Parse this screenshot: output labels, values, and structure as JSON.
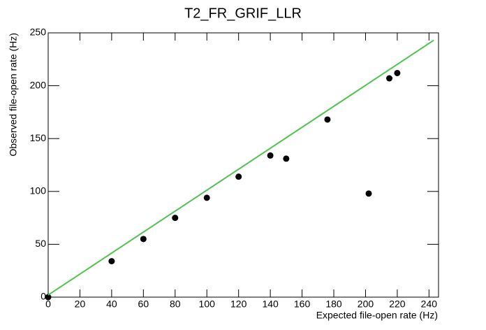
{
  "chart_data": {
    "type": "scatter",
    "title": "T2_FR_GRIF_LLR",
    "x_label": "Expected file-open rate (Hz)",
    "y_label": "Observed file-open rate (Hz)",
    "xlim": [
      0,
      246
    ],
    "ylim": [
      0,
      250
    ],
    "xticks": [
      0,
      20,
      40,
      60,
      80,
      100,
      120,
      140,
      160,
      180,
      200,
      220,
      240
    ],
    "yticks": [
      0,
      50,
      100,
      150,
      200,
      250
    ],
    "series": [
      {
        "type": "scatter",
        "color": "#000000",
        "x": [
          0,
          40,
          60,
          80,
          100,
          120,
          140,
          150,
          176,
          202,
          215,
          220
        ],
        "values": [
          0,
          34,
          55,
          75,
          94,
          114,
          134,
          131,
          168,
          98,
          207,
          212
        ]
      },
      {
        "type": "line",
        "color": "#4fc34f",
        "x": [
          0,
          243
        ],
        "values": [
          2,
          243
        ]
      }
    ]
  }
}
